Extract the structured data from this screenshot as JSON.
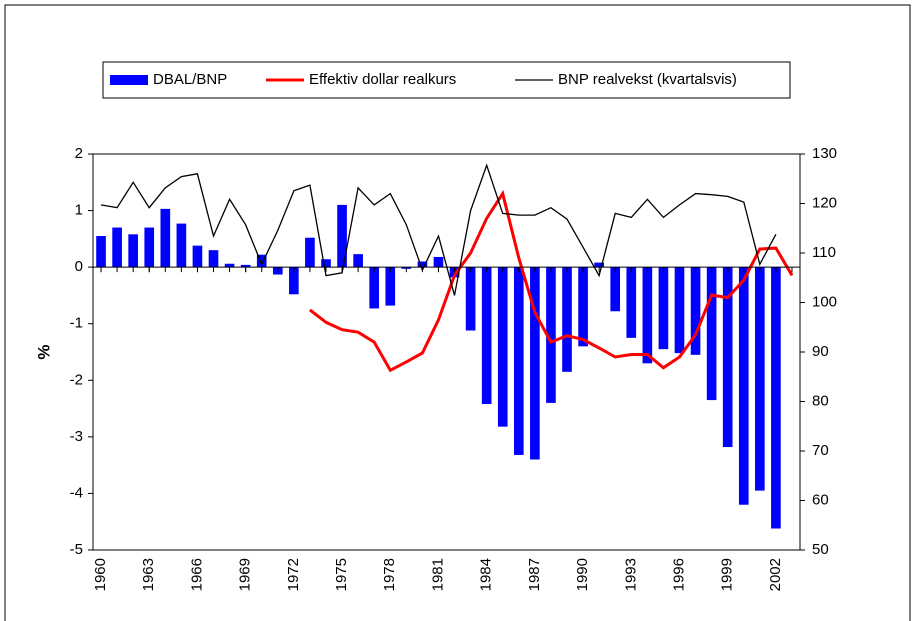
{
  "chart_data": {
    "type": "combo",
    "y_label": "%",
    "x": [
      1960,
      1961,
      1962,
      1963,
      1964,
      1965,
      1966,
      1967,
      1968,
      1969,
      1970,
      1971,
      1972,
      1973,
      1974,
      1975,
      1976,
      1977,
      1978,
      1979,
      1980,
      1981,
      1982,
      1983,
      1984,
      1985,
      1986,
      1987,
      1988,
      1989,
      1990,
      1991,
      1992,
      1993,
      1994,
      1995,
      1996,
      1997,
      1998,
      1999,
      2000,
      2001,
      2002,
      2003
    ],
    "xlim": [
      1959.5,
      2003.5
    ],
    "xticks": [
      1960,
      1963,
      1966,
      1969,
      1972,
      1975,
      1978,
      1981,
      1984,
      1987,
      1990,
      1993,
      1996,
      1999,
      2002
    ],
    "ylim": [
      -5,
      2
    ],
    "yticks": [
      -5,
      -4,
      -3,
      -2,
      -1,
      0,
      1,
      2
    ],
    "y2lim": [
      50,
      130
    ],
    "y2ticks": [
      50,
      60,
      70,
      80,
      90,
      100,
      110,
      120,
      130
    ],
    "series": [
      {
        "name": "DBAL/BNP",
        "kind": "bar",
        "color": "#0000ff",
        "values": [
          0.55,
          0.7,
          0.58,
          0.7,
          1.03,
          0.77,
          0.38,
          0.3,
          0.06,
          0.04,
          0.22,
          -0.13,
          -0.48,
          0.52,
          0.14,
          1.1,
          0.23,
          -0.73,
          -0.68,
          -0.03,
          0.1,
          0.18,
          -0.18,
          -1.12,
          -2.42,
          -2.82,
          -3.32,
          -3.4,
          -2.4,
          -1.85,
          -1.4,
          0.08,
          -0.78,
          -1.25,
          -1.7,
          -1.45,
          -1.52,
          -1.55,
          -2.35,
          -3.18,
          -4.2,
          -3.95,
          -4.62,
          null
        ]
      },
      {
        "name": "Effektiv dollar realkurs",
        "kind": "line",
        "axis": "y2",
        "color": "#ff0000",
        "values": [
          null,
          null,
          null,
          null,
          null,
          null,
          null,
          null,
          null,
          null,
          null,
          null,
          null,
          98.5,
          96,
          94.5,
          94,
          92,
          86.3,
          88,
          89.8,
          96.5,
          105.5,
          110,
          117,
          122,
          109,
          98,
          92,
          93.3,
          92.5,
          90.8,
          89,
          89.5,
          89.5,
          86.8,
          89,
          93.5,
          101.5,
          101,
          104.5,
          110.8,
          111,
          105.5
        ]
      },
      {
        "name": "BNP realvekst (kvartalsvis)",
        "kind": "line",
        "color": "#000000",
        "values": [
          1.1,
          1.05,
          1.5,
          1.05,
          1.4,
          1.6,
          1.65,
          0.55,
          1.2,
          0.75,
          0.05,
          0.65,
          1.35,
          1.45,
          -0.15,
          -0.1,
          1.4,
          1.1,
          1.3,
          0.75,
          -0.05,
          0.55,
          -0.5,
          1.0,
          1.8,
          0.95,
          0.92,
          0.92,
          1.05,
          0.85,
          0.35,
          -0.15,
          0.95,
          0.88,
          1.2,
          0.88,
          1.1,
          1.3,
          1.28,
          1.25,
          1.15,
          0.05,
          0.58,
          null
        ]
      }
    ]
  }
}
